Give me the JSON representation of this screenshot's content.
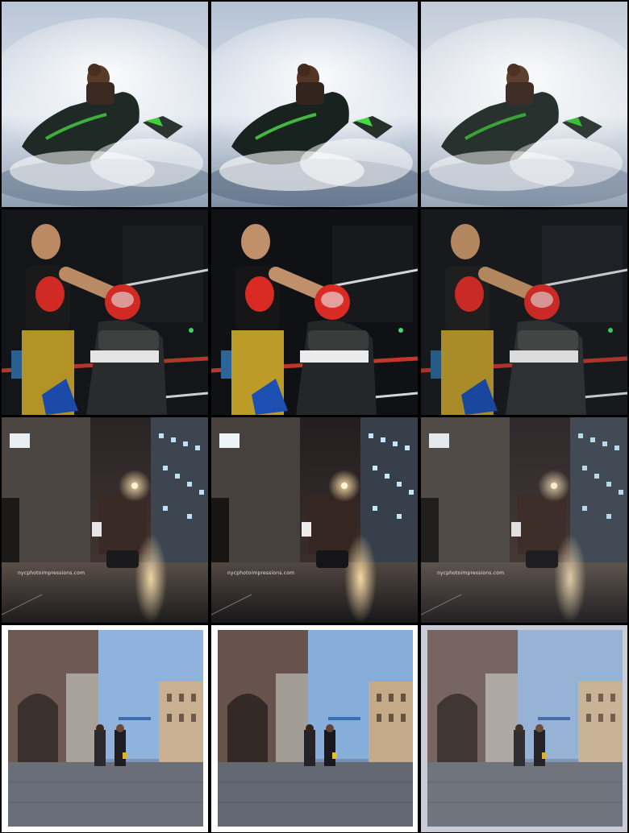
{
  "grid": {
    "rows": [
      {
        "scene": "jet-ski-rider",
        "variants": [
          "a",
          "b",
          "c"
        ]
      },
      {
        "scene": "boxing-match",
        "variants": [
          "a",
          "b",
          "c"
        ]
      },
      {
        "scene": "night-street",
        "variants": [
          "a",
          "b",
          "c"
        ],
        "watermark": "nycphotoimpressions.com"
      },
      {
        "scene": "day-street-women-walking",
        "variants": [
          "a",
          "b",
          "c"
        ]
      }
    ]
  },
  "watermarks": {
    "r3c1": "nycphotoimpressions.com",
    "r3c2": "nycphotoimpressions.com",
    "r3c3": "nycphotoimpressions.com"
  }
}
